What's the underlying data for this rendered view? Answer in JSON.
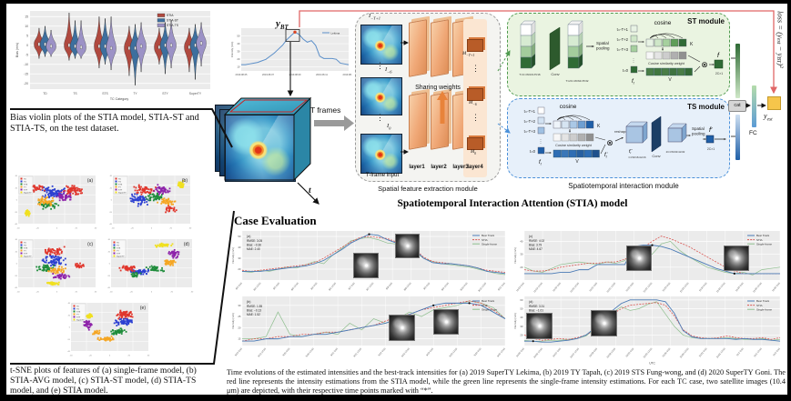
{
  "colors": {
    "loss_red": "#e06666",
    "module_green": "#4e9a4e",
    "module_blue": "#4a90d9",
    "arrow_orange": "#e8833a",
    "yellow_box": "#f6c54b",
    "plot_bg": "#ebebeb"
  },
  "symbols": {
    "otimes": "⊗",
    "vdots": "⋮"
  },
  "violin": {
    "caption": "Bias violin plots of the STIA model, STIA-ST and STIA-TS, on the test dataset.",
    "legend": [
      "STIA",
      "STIA-ST",
      "STIA-TS"
    ],
    "colors": [
      "#b0493f",
      "#3d6f9e",
      "#9c92c6"
    ],
    "categories": [
      "TD",
      "TS",
      "STS",
      "TY",
      "STY",
      "SuperTY"
    ],
    "ylabel": "Bias (m/s)",
    "xlabel": "TC Category",
    "yticks": [
      15,
      10,
      5,
      0,
      -5,
      -10,
      -15,
      -20
    ],
    "series": [
      [
        [
          -7,
          -2,
          3,
          9
        ],
        [
          -8,
          -3,
          3,
          17
        ],
        [
          -12,
          -4,
          3,
          15
        ],
        [
          -16,
          -5,
          2,
          10
        ],
        [
          -10,
          -4,
          2,
          9
        ],
        [
          -14,
          -4,
          2,
          9
        ]
      ],
      [
        [
          -6,
          -2,
          3,
          10
        ],
        [
          -7,
          -3,
          2,
          13
        ],
        [
          -10,
          -4,
          3,
          14
        ],
        [
          -21,
          -5,
          2,
          11
        ],
        [
          -15,
          -3,
          3,
          12
        ],
        [
          -18,
          -3,
          3,
          11
        ]
      ],
      [
        [
          -6,
          -3,
          2,
          8
        ],
        [
          -7,
          -4,
          2,
          13
        ],
        [
          -13,
          -5,
          2,
          15
        ],
        [
          -14,
          -4,
          3,
          12
        ],
        [
          -12,
          -3,
          3,
          13
        ],
        [
          -11,
          -2,
          4,
          12
        ]
      ]
    ]
  },
  "tsne": {
    "caption": "t-SNE plots of features of (a) single-frame model, (b) STIA-AVG model, (c) STIA-ST model, (d) STIA-TS model, and (e) STIA model.",
    "classes": [
      "TD",
      "TS",
      "STS",
      "TY",
      "STY",
      "SuperTY"
    ],
    "class_colors": [
      "#e0362c",
      "#2b3fd1",
      "#1f8c3b",
      "#f5a623",
      "#8e24aa",
      "#f0e020"
    ],
    "ticks": [
      "-40",
      "-20",
      "0",
      "20",
      "40"
    ],
    "panels": [
      {
        "label": "(a)",
        "clusters": [
          [
            0,
            70,
            30,
            18,
            14,
            70
          ],
          [
            1,
            45,
            35,
            20,
            15,
            80
          ],
          [
            2,
            40,
            60,
            18,
            12,
            50
          ],
          [
            3,
            35,
            55,
            20,
            14,
            50
          ],
          [
            4,
            60,
            45,
            15,
            12,
            45
          ],
          [
            5,
            12,
            78,
            5,
            8,
            40
          ],
          [
            0,
            25,
            25,
            12,
            10,
            30
          ]
        ]
      },
      {
        "label": "(b)",
        "clusters": [
          [
            0,
            40,
            30,
            18,
            14,
            55
          ],
          [
            1,
            35,
            50,
            18,
            14,
            60
          ],
          [
            2,
            55,
            45,
            16,
            12,
            50
          ],
          [
            3,
            70,
            55,
            14,
            10,
            40
          ],
          [
            4,
            65,
            30,
            14,
            12,
            45
          ],
          [
            5,
            88,
            20,
            6,
            10,
            40
          ],
          [
            0,
            75,
            70,
            12,
            8,
            25
          ]
        ]
      },
      {
        "label": "(c)",
        "clusters": [
          [
            0,
            45,
            25,
            20,
            10,
            50
          ],
          [
            1,
            45,
            45,
            20,
            14,
            70
          ],
          [
            2,
            35,
            60,
            16,
            10,
            45
          ],
          [
            3,
            50,
            65,
            16,
            10,
            45
          ],
          [
            4,
            55,
            78,
            14,
            8,
            40
          ],
          [
            5,
            45,
            92,
            10,
            4,
            40
          ],
          [
            0,
            80,
            55,
            8,
            6,
            20
          ]
        ]
      },
      {
        "label": "(d)",
        "clusters": [
          [
            5,
            65,
            12,
            12,
            6,
            40
          ],
          [
            4,
            78,
            30,
            10,
            10,
            45
          ],
          [
            3,
            72,
            48,
            12,
            10,
            45
          ],
          [
            2,
            55,
            62,
            14,
            8,
            45
          ],
          [
            1,
            35,
            68,
            16,
            8,
            55
          ],
          [
            0,
            22,
            60,
            12,
            8,
            45
          ],
          [
            2,
            30,
            75,
            10,
            6,
            20
          ]
        ]
      },
      {
        "label": "(e)",
        "clusters": [
          [
            0,
            70,
            25,
            16,
            12,
            60
          ],
          [
            1,
            68,
            40,
            14,
            10,
            55
          ],
          [
            2,
            60,
            60,
            14,
            8,
            45
          ],
          [
            3,
            45,
            75,
            14,
            6,
            45
          ],
          [
            4,
            22,
            45,
            8,
            12,
            40
          ],
          [
            5,
            25,
            28,
            6,
            8,
            35
          ],
          [
            3,
            32,
            62,
            8,
            6,
            20
          ]
        ]
      }
    ]
  },
  "bt_chart": {
    "legend": "Lekima",
    "color": "#5b8fc9",
    "ylabel": "Intensity (m/s)",
    "peak_base": "y",
    "peak_sub": "BT",
    "yticks": [
      10,
      20,
      30,
      40,
      50
    ],
    "xticks": [
      "2019.08.05",
      "2019.08.07",
      "2019.08.09",
      "2019.08.11",
      "2019.08.13"
    ],
    "values": [
      13,
      13,
      14,
      15,
      16,
      18,
      20,
      24,
      28,
      33,
      38,
      45,
      50,
      55,
      52,
      46,
      42,
      44,
      38,
      24,
      21,
      21,
      21,
      20,
      15,
      14,
      13
    ]
  },
  "flow": {
    "t_frames": "T frames",
    "t_axis": "t",
    "t_frame_input": "T-frame input",
    "sharing": "Sharing weights",
    "layers": [
      "layer1",
      "layer2",
      "layer3",
      "layer4"
    ],
    "inputs": [
      {
        "base": "I",
        "sub": "−T+1"
      },
      {
        "base": "I",
        "sub": "−6"
      },
      {
        "base": "I",
        "sub": "0"
      }
    ],
    "maps": [
      {
        "base": "M",
        "sub": "−T+1"
      },
      {
        "base": "M",
        "sub": "−6"
      },
      {
        "base": "M",
        "sub": "0"
      }
    ],
    "extraction_label": "Spatial feature extraction module",
    "interaction_label": "Spatiotemporal interaction module",
    "main_title": "Spatiotemporal Interaction Attention (STIA) model"
  },
  "st_module": {
    "title": "ST module",
    "cosine": "cosine",
    "pooling": "Spatial pooling",
    "conv": "Conv",
    "trows": [
      "t=-T+1",
      "t=-T+2",
      "t=-T+3",
      "t=0"
    ],
    "k": "K",
    "v": "V",
    "weight": "Cosine similarity weight",
    "f_base": "f",
    "f_sub": "t",
    "f_out": "f",
    "f_out_dim": "2C×1",
    "dim1": "T×C×W/16×H/16",
    "dim2": "T×2C×W/32×H/32"
  },
  "ts_module": {
    "title": "TS module",
    "cosine": "cosine",
    "pooling": "Spatial pooling",
    "conv": "Conv",
    "reshape": "reshape",
    "trows": [
      "t=-T+1",
      "t=-T+2",
      "t=-T+3",
      "t=0"
    ],
    "k": "K",
    "v": "V",
    "weight": "Cosine similarity weight",
    "f_base": "f",
    "f_sub": "t",
    "f1_sup": "′",
    "f2_sup": "″",
    "f_out": "f′",
    "f_out_dim": "2C×1",
    "dim1": "C×W/16×H/16",
    "dim2": "2C×W/32×H/32"
  },
  "output": {
    "cat": "cat",
    "fc": "FC",
    "yest_base": "y",
    "yest_sub": "est",
    "loss_parts": [
      "loss = (y",
      "est",
      " − y",
      "BT",
      ")²"
    ]
  },
  "case_eval": {
    "title": "Case Evaluation",
    "ylabel": "Intensity (m/s)",
    "legend": [
      "Best Track",
      "STIA",
      "Single-frame"
    ],
    "legend_colors": [
      "#4a7ab5",
      "#d9534f",
      "#8fbf8f"
    ],
    "caption": "Time evolutions of the estimated intensities and the best-track intensities for (a) 2019 SuperTY Lekima, (b) 2019 TY Tapah, (c) 2019 STS Fung-wong, and (d) 2020 SuperTY Goni. The red line represents the intensity estimations from the STIA model, while the green line represents the single-frame intensity estimations. For each TC case, two satellite images (10.4 μm) are depicted, with their respective time points marked with “*”.",
    "charts": [
      {
        "label": "(a)",
        "stats": [
          "RMSE: 3.05",
          "Bias: −0.36",
          "MAE: 2.40"
        ],
        "ymin": 10,
        "ymax": 55,
        "yticks": [
          20,
          30,
          40,
          50
        ],
        "xlabel": "",
        "xticks": [
          "8/4 0:00",
          "8/4 12:00",
          "8/5 0:00",
          "8/5 12:00",
          "8/6 0:00",
          "8/6 12:00",
          "8/7 0:00",
          "8/7 12:00",
          "8/8 0:00",
          "8/8 12:00",
          "8/9 0:00",
          "8/9 12:00",
          "8/10 0:00",
          "8/10 12:00",
          "8/11 0:00"
        ],
        "marks": [
          14,
          18
        ],
        "series": {
          "best_track": [
            18,
            18,
            18,
            19,
            20,
            21,
            22,
            23,
            25,
            28,
            33,
            38,
            44,
            48,
            52,
            51,
            47,
            44,
            50,
            38,
            30,
            26,
            25,
            25,
            24,
            23,
            21,
            18,
            17,
            16
          ],
          "stia": [
            19,
            18,
            19,
            20,
            21,
            22,
            23,
            24,
            26,
            30,
            35,
            40,
            45,
            49,
            50,
            49,
            48,
            45,
            43,
            39,
            31,
            27,
            26,
            25,
            24,
            23,
            21,
            19,
            18,
            17
          ],
          "single_frame": [
            18,
            17,
            19,
            18,
            20,
            22,
            21,
            24,
            27,
            25,
            33,
            39,
            46,
            48,
            49,
            47,
            44,
            43,
            40,
            36,
            30,
            27,
            25,
            24,
            23,
            22,
            20,
            18,
            16,
            15
          ]
        }
      },
      {
        "label": "(b)",
        "stats": [
          "RMSE: 1.55",
          "Bias: −0.13",
          "MAE: 1.52"
        ],
        "ymin": 12,
        "ymax": 34,
        "yticks": [
          15,
          20,
          25,
          30
        ],
        "xlabel": "",
        "xticks": [
          "9/19 0:00",
          "9/19 12:00",
          "9/20 0:00",
          "9/20 12:00",
          "9/21 0:00",
          "9/21 12:00",
          "9/22 0:00",
          "9/22 12:00",
          "9/23 0:00",
          "9/23 12:00",
          "9/24 0:00",
          "9/24 12:00"
        ],
        "marks": [
          16,
          19
        ],
        "series": {
          "best_track": [
            14,
            14,
            15,
            15,
            16,
            16,
            17,
            17,
            18,
            19,
            20,
            21,
            22,
            24,
            26,
            28,
            30,
            31,
            31,
            31,
            30,
            27,
            24
          ],
          "stia": [
            14,
            15,
            15,
            16,
            16,
            17,
            17,
            18,
            18,
            19,
            20,
            21,
            23,
            25,
            26,
            28,
            29,
            30,
            31,
            32,
            31,
            28,
            24
          ],
          "single_frame": [
            15,
            15,
            16,
            27,
            17,
            16,
            17,
            18,
            17,
            22,
            19,
            24,
            22,
            24,
            27,
            25,
            28,
            29,
            30,
            32,
            31,
            29,
            24
          ]
        }
      },
      {
        "label": "(c)",
        "stats": [
          "RMSE: 4.02",
          "Bias: 3.79",
          "MAE: 4.67"
        ],
        "ymin": 10,
        "ymax": 48,
        "yticks": [
          20,
          30,
          40
        ],
        "xlabel": "",
        "xticks": [
          "11/19 0:00",
          "11/19 12:00",
          "11/20 0:00",
          "11/20 12:00",
          "11/21 0:00",
          "11/21 12:00",
          "11/22 0:00",
          "11/22 12:00",
          "11/23 0:00",
          "11/23 12:00",
          "11/24 0:00",
          "11/24 12:00",
          "11/25 0:00",
          "11/25 12:00",
          "11/26 0:00"
        ],
        "marks": [
          14,
          23
        ],
        "series": {
          "best_track": [
            15,
            15,
            15,
            15,
            16,
            16,
            18,
            18,
            22,
            22,
            22,
            22,
            36,
            37,
            37,
            36,
            34,
            31,
            28,
            25,
            22,
            19,
            17,
            15,
            15,
            15,
            15,
            15,
            15
          ],
          "stia": [
            18,
            17,
            17,
            18,
            20,
            21,
            22,
            23,
            23,
            24,
            24,
            26,
            30,
            35,
            40,
            44,
            42,
            39,
            36,
            32,
            28,
            24,
            20,
            17,
            15,
            15,
            15,
            15,
            15
          ],
          "single_frame": [
            20,
            17,
            16,
            19,
            22,
            23,
            24,
            23,
            22,
            24,
            23,
            25,
            36,
            35,
            30,
            38,
            40,
            33,
            28,
            24,
            20,
            18,
            16,
            15,
            16,
            14,
            18,
            19,
            20
          ]
        }
      },
      {
        "label": "(d)",
        "stats": [
          "RMSE: 3.31",
          "Bias: −1.01",
          "MAE: 3.45"
        ],
        "ymin": 8,
        "ymax": 64,
        "yticks": [
          20,
          30,
          40,
          50,
          60
        ],
        "xlabel": "UTC",
        "xticks": [
          "10/26 0:00",
          "10/26 12:00",
          "10/27 0:00",
          "10/27 12:00",
          "10/28 0:00",
          "10/28 12:00",
          "10/29 0:00",
          "10/29 12:00",
          "10/30 0:00",
          "10/30 12:00",
          "10/31 0:00",
          "10/31 12:00",
          "11/1 0:00",
          "11/1 12:00",
          "11/2 0:00"
        ],
        "marks": [
          1,
          9
        ],
        "series": {
          "best_track": [
            13,
            13,
            12,
            12,
            13,
            14,
            16,
            20,
            28,
            38,
            48,
            56,
            60,
            60,
            60,
            60,
            58,
            45,
            25,
            18,
            16,
            16,
            16,
            16,
            15,
            16,
            15,
            15,
            14,
            13
          ],
          "stia": [
            20,
            16,
            14,
            15,
            16,
            15,
            17,
            20,
            26,
            35,
            44,
            50,
            54,
            55,
            56,
            57,
            54,
            42,
            26,
            19,
            17,
            16,
            17,
            19,
            17,
            16,
            16,
            17,
            15,
            17
          ],
          "single_frame": [
            14,
            13,
            13,
            14,
            14,
            15,
            16,
            19,
            27,
            37,
            46,
            52,
            48,
            50,
            55,
            58,
            44,
            30,
            20,
            17,
            16,
            16,
            16,
            17,
            16,
            15,
            15,
            16,
            14,
            15
          ]
        }
      }
    ]
  }
}
